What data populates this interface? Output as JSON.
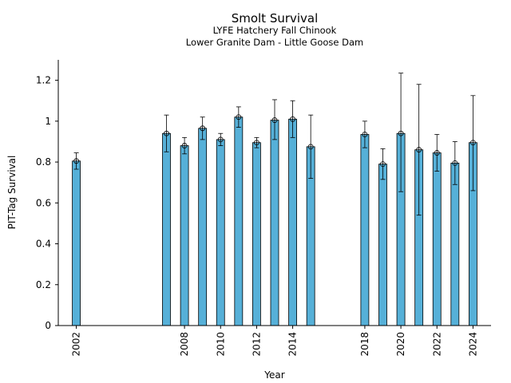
{
  "chart_data": {
    "type": "bar",
    "title": "Smolt Survival",
    "subtitle": [
      "LYFE Hatchery Fall Chinook",
      "Lower Granite Dam - Little Goose Dam"
    ],
    "xlabel": "Year",
    "ylabel": "PIT-Tag Survival",
    "ylim": [
      0,
      1.3
    ],
    "yticks": [
      0,
      0.2,
      0.4,
      0.6,
      0.8,
      1,
      1.2
    ],
    "ytick_labels": [
      "0",
      "0.2",
      "0.4",
      "0.6",
      "0.8",
      "1",
      "1.2"
    ],
    "xlim": [
      2001,
      2025
    ],
    "xticks": [
      2002,
      2008,
      2010,
      2012,
      2014,
      2018,
      2020,
      2022,
      2024
    ],
    "xtick_labels": [
      "2002",
      "2008",
      "2010",
      "2012",
      "2014",
      "2018",
      "2020",
      "2022",
      "2024"
    ],
    "bar_color": "#56b0d8",
    "years": [
      2002,
      2007,
      2008,
      2009,
      2010,
      2011,
      2012,
      2013,
      2014,
      2015,
      2018,
      2019,
      2020,
      2021,
      2022,
      2023,
      2024
    ],
    "values": [
      0.805,
      0.94,
      0.88,
      0.965,
      0.91,
      1.02,
      0.895,
      1.005,
      1.01,
      0.875,
      0.935,
      0.79,
      0.94,
      0.86,
      0.845,
      0.795,
      0.895
    ],
    "ci_lower": [
      0.765,
      0.85,
      0.84,
      0.91,
      0.88,
      0.97,
      0.87,
      0.91,
      0.92,
      0.72,
      0.87,
      0.715,
      0.655,
      0.54,
      0.755,
      0.69,
      0.66
    ],
    "ci_upper": [
      0.845,
      1.03,
      0.92,
      1.02,
      0.94,
      1.07,
      0.92,
      1.105,
      1.1,
      1.03,
      1.0,
      0.865,
      1.235,
      1.18,
      0.935,
      0.9,
      1.125
    ]
  }
}
